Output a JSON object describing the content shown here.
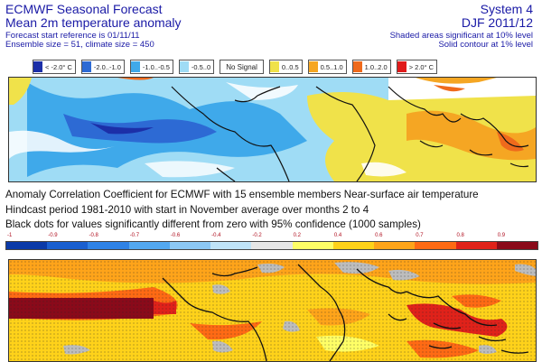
{
  "header": {
    "title": "ECMWF Seasonal Forecast",
    "subtitle": "Mean 2m temperature anomaly",
    "start_ref": "Forecast start reference is 01/11/11",
    "ensemble": "Ensemble size = 51, climate size = 450",
    "system": "System 4",
    "period": "DJF 2011/12",
    "shaded_note": "Shaded areas significant at 10% level",
    "contour_note": "Solid contour at 1% level"
  },
  "legend": [
    {
      "label": "< -2.0° C",
      "color": "#1c2fa8"
    },
    {
      "label": "-2.0..-1.0",
      "color": "#2d6ad4"
    },
    {
      "label": "-1.0..-0.5",
      "color": "#3fa9ea"
    },
    {
      "label": "-0.5..0",
      "color": "#9fdcf5"
    },
    {
      "label": "No Signal",
      "color": "#ffffff"
    },
    {
      "label": "0..0.5",
      "color": "#f0e24a"
    },
    {
      "label": "0.5..1.0",
      "color": "#f5a623"
    },
    {
      "label": "1.0..2.0",
      "color": "#ef6a1c"
    },
    {
      "label": "> 2.0° C",
      "color": "#e01a1a"
    }
  ],
  "description": {
    "line1": "Anomaly Correlation Coefficient for ECMWF with 15 ensemble members  Near-surface air temperature",
    "line2": "Hindcast period 1981-2010 with start in November average over months  2 to  4",
    "line3": "Black dots for values significantly different from zero with 95% confidence (1000 samples)"
  },
  "colorbar": {
    "ticks": [
      "-1",
      "-0.9",
      "-0.8",
      "-0.7",
      "-0.6",
      "-0.4",
      "-0.2",
      "0.2",
      "0.4",
      "0.6",
      "0.7",
      "0.8",
      "0.9"
    ],
    "colors": [
      "#0b3aa8",
      "#1a5fd0",
      "#2f82e6",
      "#53a8f0",
      "#8cc8f5",
      "#bfe3f7",
      "#e6e6e6",
      "#ffff66",
      "#ffd21a",
      "#ffa41a",
      "#ff6a14",
      "#e0221a",
      "#8a0a1a"
    ]
  },
  "maps": {
    "forecast_anomaly": "forecast-map",
    "correlation": "acc-map"
  }
}
